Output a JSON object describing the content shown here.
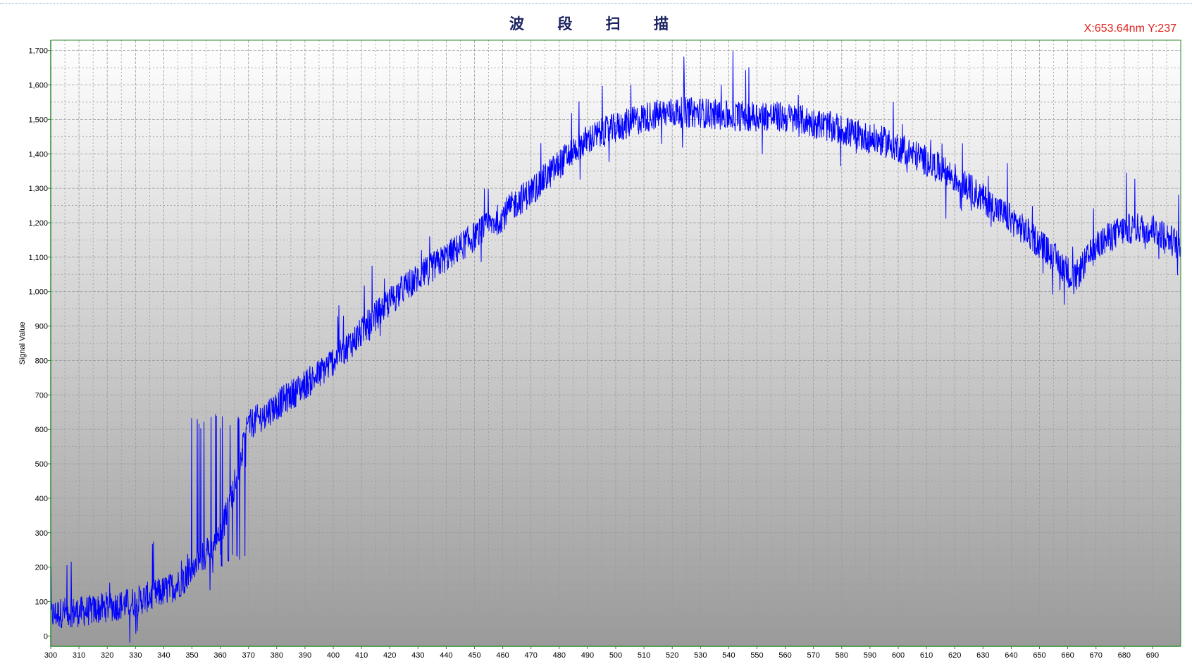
{
  "title": "波 段 扫 描",
  "cursor_readout": "X:653.64nm  Y:237",
  "chart_data": {
    "type": "line",
    "title": "波 段 扫 描",
    "xlabel": "",
    "ylabel": "Signal Value",
    "xlim": [
      300,
      700
    ],
    "ylim": [
      -30,
      1730
    ],
    "x_ticks": [
      300,
      310,
      320,
      330,
      340,
      350,
      360,
      370,
      380,
      390,
      400,
      410,
      420,
      430,
      440,
      450,
      460,
      470,
      480,
      490,
      500,
      510,
      520,
      530,
      540,
      550,
      560,
      570,
      580,
      590,
      600,
      610,
      620,
      630,
      640,
      650,
      660,
      670,
      680,
      690
    ],
    "x_tick_labels": [
      "300",
      "310",
      "320",
      "330",
      "340",
      "350",
      "360",
      "370",
      "380",
      "390",
      "400",
      "410",
      "420",
      "430",
      "440",
      "450",
      "460",
      "470",
      "480",
      "490",
      "500",
      "510",
      "520",
      "530",
      "540",
      "550",
      "560",
      "570",
      "580",
      "590",
      "600",
      "610",
      "620",
      "630",
      "640",
      "650",
      "660",
      "670",
      "680",
      "690"
    ],
    "y_ticks": [
      0,
      100,
      200,
      300,
      400,
      500,
      600,
      700,
      800,
      900,
      1000,
      1100,
      1200,
      1300,
      1400,
      1500,
      1600,
      1700
    ],
    "y_tick_labels": [
      "0",
      "100",
      "200",
      "300",
      "400",
      "500",
      "600",
      "700",
      "800",
      "900",
      "1,000",
      "1,100",
      "1,200",
      "1,300",
      "1,400",
      "1,500",
      "1,600",
      "1,700"
    ],
    "grid": true,
    "series": [
      {
        "name": "Signal Value",
        "color": "#0000ff",
        "noise_amplitude": 90,
        "spike_range": [
          346,
          370
        ],
        "x": [
          300,
          305,
          310,
          315,
          320,
          325,
          330,
          335,
          340,
          345,
          350,
          355,
          360,
          365,
          370,
          375,
          380,
          385,
          390,
          395,
          400,
          405,
          410,
          415,
          420,
          425,
          430,
          435,
          440,
          445,
          450,
          455,
          460,
          465,
          470,
          475,
          480,
          485,
          490,
          495,
          500,
          505,
          510,
          515,
          520,
          525,
          530,
          535,
          540,
          545,
          550,
          555,
          560,
          565,
          570,
          575,
          580,
          585,
          590,
          595,
          600,
          605,
          610,
          615,
          620,
          625,
          630,
          635,
          640,
          645,
          650,
          655,
          660,
          662,
          665,
          670,
          675,
          680,
          685,
          690,
          695,
          700
        ],
        "values": [
          60,
          70,
          70,
          75,
          85,
          90,
          100,
          115,
          130,
          150,
          190,
          240,
          290,
          440,
          610,
          640,
          670,
          700,
          730,
          760,
          800,
          840,
          880,
          930,
          970,
          1010,
          1040,
          1070,
          1100,
          1130,
          1160,
          1190,
          1220,
          1260,
          1290,
          1330,
          1370,
          1410,
          1440,
          1460,
          1475,
          1490,
          1505,
          1515,
          1520,
          1520,
          1520,
          1515,
          1510,
          1510,
          1510,
          1510,
          1505,
          1500,
          1490,
          1480,
          1470,
          1455,
          1445,
          1435,
          1420,
          1400,
          1380,
          1355,
          1330,
          1300,
          1270,
          1240,
          1210,
          1175,
          1140,
          1100,
          1060,
          1030,
          1070,
          1130,
          1160,
          1180,
          1185,
          1180,
          1160,
          1130
        ]
      }
    ]
  }
}
